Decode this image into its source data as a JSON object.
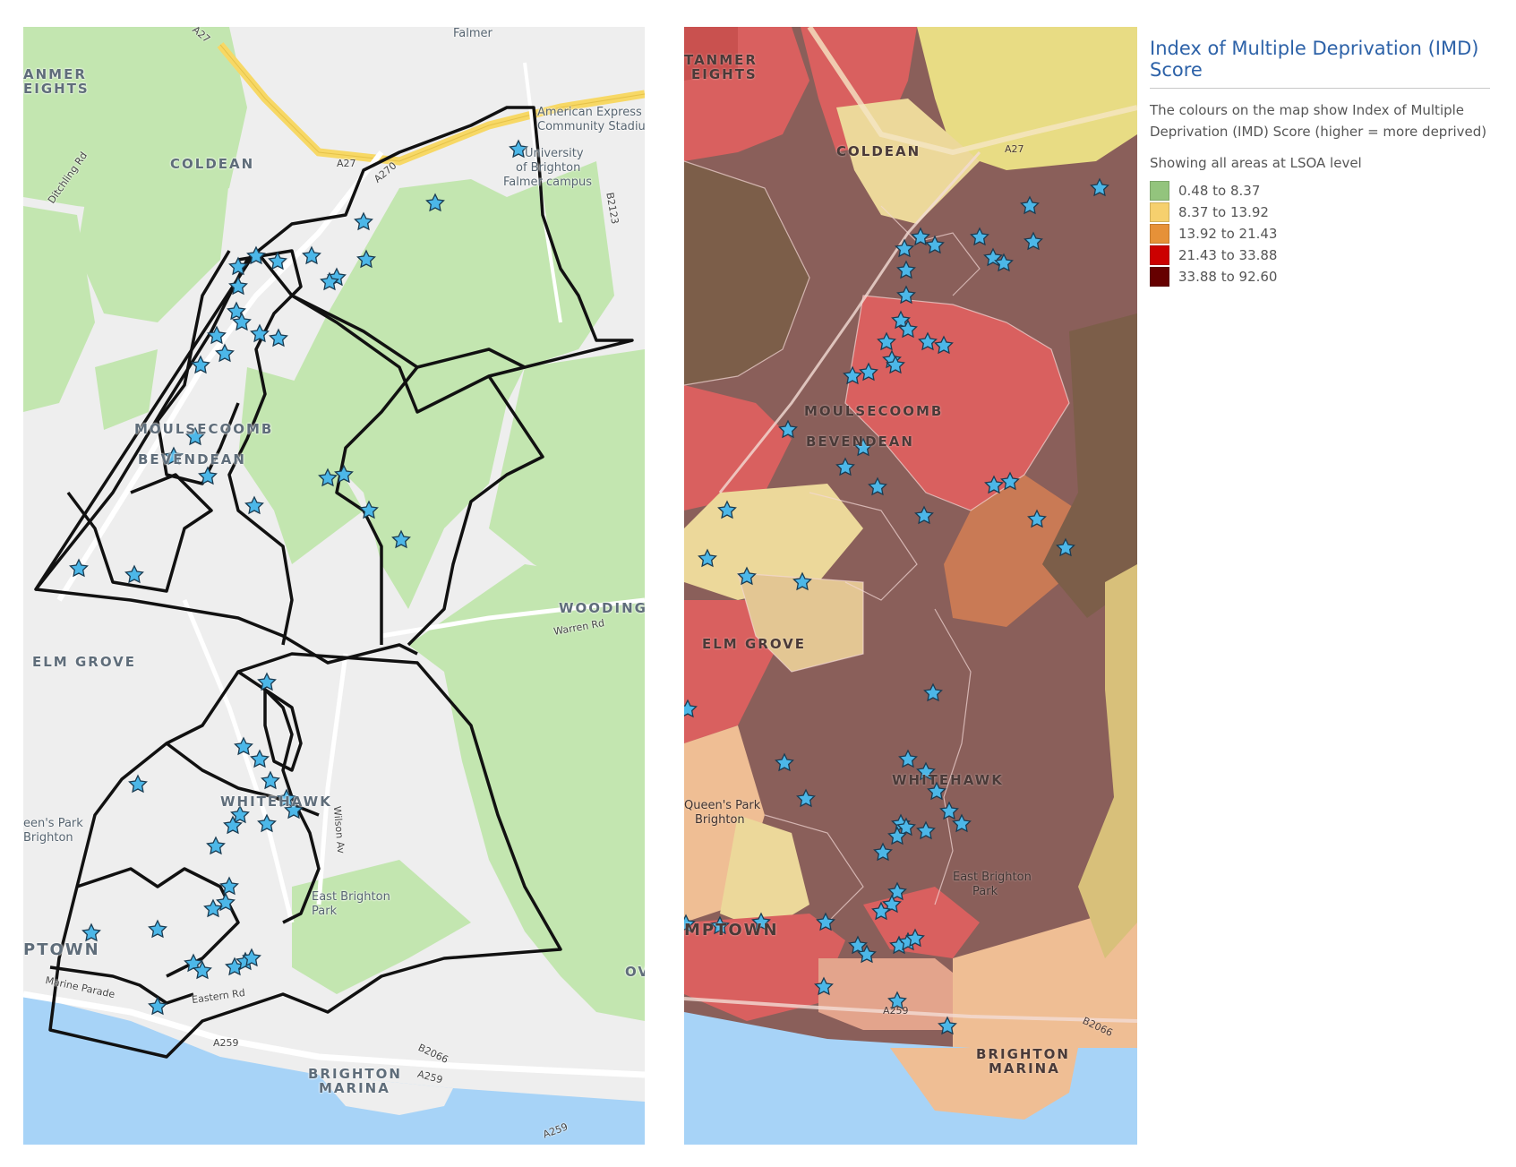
{
  "left_map": {
    "labels": {
      "falmer": "Falmer",
      "coldean": "COLDEAN",
      "stanmer_1": "ANMER",
      "stanmer_2": "EIGHTS",
      "amex_1": "American Express",
      "amex_2": "Community Stadiu",
      "uni_1": "University",
      "uni_2": "of Brighton",
      "uni_3": "Falmer campus",
      "moulsecoomb": "MOULSECOOMB",
      "bevendean": "BEVENDEAN",
      "elm_grove": "ELM GROVE",
      "woodingdean": "WOODING",
      "warren_rd": "Warren Rd",
      "whitehawk": "WHITEHAWK",
      "queens_park_1": "een's Park",
      "queens_park_2": "Brighton",
      "east_brighton_park_1": "East Brighton",
      "east_brighton_park_2": "Park",
      "kemptown": "PTOWN",
      "brighton_marina_1": "BRIGHTON",
      "brighton_marina_2": "MARINA",
      "a27_1": "A27",
      "a27_2": "A27",
      "a270": "A270",
      "b2123": "B2123",
      "ditchling_rd": "Ditchling Rd",
      "a259_1": "A259",
      "a259_2": "A259",
      "a259_3": "A259",
      "b2066": "B2066",
      "eastern_rd": "Eastern Rd",
      "marine_parade": "Marine Parade",
      "wilson_ave": "Wilson Av",
      "ov": "OV"
    }
  },
  "right_map": {
    "labels": {
      "stanmer_1": "TANMER",
      "stanmer_2": "EIGHTS",
      "coldean": "COLDEAN",
      "a27": "A27",
      "moulsecoomb": "MOULSECOOMB",
      "bevendean": "BEVENDEAN",
      "elm_grove": "ELM GROVE",
      "whitehawk": "WHITEHAWK",
      "queens_park_1": "Queen's Park",
      "queens_park_2": "Brighton",
      "east_brighton_park_1": "East Brighton",
      "east_brighton_park_2": "Park",
      "kemptown": "MPTOWN",
      "brighton_marina_1": "BRIGHTON",
      "brighton_marina_2": "MARINA",
      "a259": "A259",
      "b2066": "B2066"
    }
  },
  "legend": {
    "title": "Index of Multiple Deprivation (IMD) Score",
    "description": "The colours on the map show Index of Multiple Deprivation (IMD) Score (higher = more deprived)",
    "level": "Showing all areas at LSOA level",
    "items": [
      {
        "label": "0.48 to 8.37",
        "color": "#93c47d"
      },
      {
        "label": "8.37 to 13.92",
        "color": "#f6d06e"
      },
      {
        "label": "13.92 to 21.43",
        "color": "#e69138"
      },
      {
        "label": "21.43 to 33.88",
        "color": "#cc0000"
      },
      {
        "label": "33.88 to 92.60",
        "color": "#660000"
      }
    ]
  },
  "colors": {
    "park_green": "#c3e6b0",
    "urban_grey": "#eeeeee",
    "sea_blue": "#a7d3f7",
    "boundary": "#111111",
    "star_fill": "#4cb7e8",
    "road_yellow": "#f7d865",
    "imd_dark": "#8a5f5a",
    "imd_red": "#d9605f",
    "imd_orange": "#c97a55",
    "imd_yellow": "#ecd89a",
    "imd_peach": "#efbe94"
  }
}
